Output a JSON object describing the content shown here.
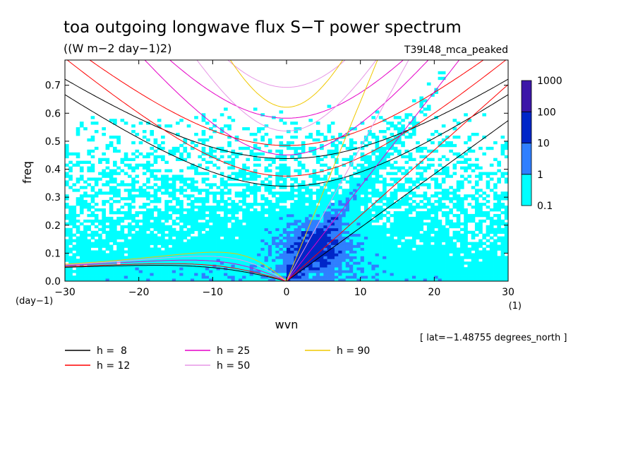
{
  "chart_data": {
    "type": "heatmap",
    "title": "toa outgoing longwave flux S−T power spectrum",
    "subtitle": "((W m−2 day−1)2)",
    "run_label": "T39L48_mca_peaked",
    "xlabel": "wvn",
    "ylabel": "freq",
    "x_unit": "(1)",
    "y_unit": "(day−1)",
    "xlim": [
      -30,
      30
    ],
    "ylim": [
      0,
      0.79
    ],
    "x_ticks": [
      -30,
      -20,
      -10,
      0,
      10,
      20,
      30
    ],
    "x_tick_labels": [
      "−30",
      "−20",
      "−10",
      "0",
      "10",
      "20",
      "30"
    ],
    "y_ticks": [
      0.0,
      0.1,
      0.2,
      0.3,
      0.4,
      0.5,
      0.6,
      0.7
    ],
    "y_tick_labels": [
      "0.0",
      "0.1",
      "0.2",
      "0.3",
      "0.4",
      "0.5",
      "0.6",
      "0.7"
    ],
    "colorbar": {
      "levels": [
        0.1,
        1,
        10,
        100,
        1000
      ],
      "level_labels": [
        "0.1",
        "1",
        "10",
        "100",
        "1000"
      ],
      "colors": [
        "#00ffff",
        "#2f7fff",
        "#0026c8",
        "#3d17a8"
      ]
    },
    "latitude_note": "[ lat=−1.48755 degrees_north ]",
    "dispersion_curves": [
      {
        "label": "h =  8",
        "h": 8,
        "color": "#000000"
      },
      {
        "label": "h = 12",
        "h": 12,
        "color": "#ff0000"
      },
      {
        "label": "h = 25",
        "h": 25,
        "color": "#e600c8"
      },
      {
        "label": "h = 50",
        "h": 50,
        "color": "#e696e6"
      },
      {
        "label": "h = 90",
        "h": 90,
        "color": "#f0c800"
      }
    ]
  }
}
